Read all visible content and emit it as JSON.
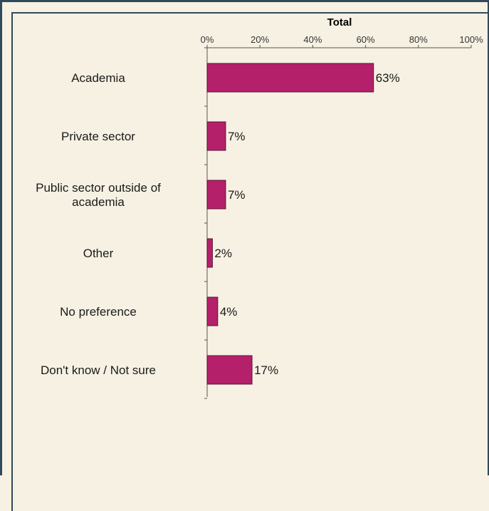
{
  "chart_data": {
    "type": "bar",
    "orientation": "horizontal",
    "title": "Total",
    "categories": [
      [
        "Academia"
      ],
      [
        "Private sector"
      ],
      [
        "Public sector outside of",
        "academia"
      ],
      [
        "Other"
      ],
      [
        "No preference"
      ],
      [
        "Don't know / Not sure"
      ]
    ],
    "values": [
      63,
      7,
      7,
      2,
      4,
      17
    ],
    "value_labels": [
      "63%",
      "7%",
      "7%",
      "2%",
      "4%",
      "17%"
    ],
    "xlim": [
      0,
      100
    ],
    "xticks": [
      0,
      20,
      40,
      60,
      80,
      100
    ],
    "xtick_labels": [
      "0%",
      "20%",
      "40%",
      "60%",
      "80%",
      "100%"
    ],
    "bar_color": "#b5206a",
    "bar_edge_color": "#5a1236",
    "grid": false,
    "legend": "none"
  },
  "colors": {
    "background": "#f6f1e3",
    "frame": "#2f4a5c"
  }
}
